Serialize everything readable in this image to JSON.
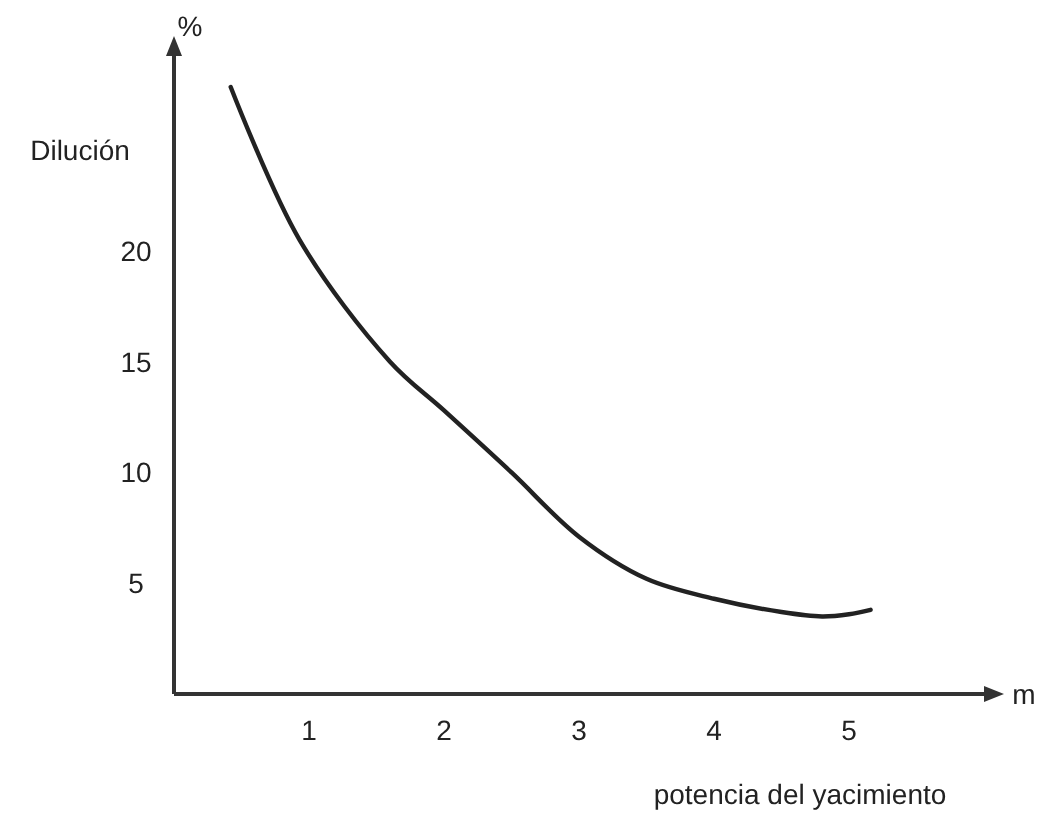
{
  "chart_data": {
    "type": "line",
    "xlabel": "potencia del yacimiento",
    "ylabel": "Dilución",
    "annotations": [
      "%",
      "m"
    ],
    "x": [
      0.42,
      0.93,
      1.6,
      2,
      2.5,
      3,
      3.5,
      4,
      4.5,
      4.8,
      5,
      5.16
    ],
    "series": [
      {
        "color": "#222222",
        "values": [
          27.4,
          20.5,
          15,
          12.8,
          10,
          7.1,
          5.2,
          4.3,
          3.7,
          3.5,
          3.6,
          3.8
        ]
      }
    ],
    "xlim": [
      0,
      6
    ],
    "ylim": [
      0,
      28.8
    ],
    "xticks": [
      1,
      2,
      3,
      4,
      5
    ],
    "yticks": [
      5,
      10,
      15,
      20
    ],
    "marker": "none",
    "line_style": "solid"
  }
}
